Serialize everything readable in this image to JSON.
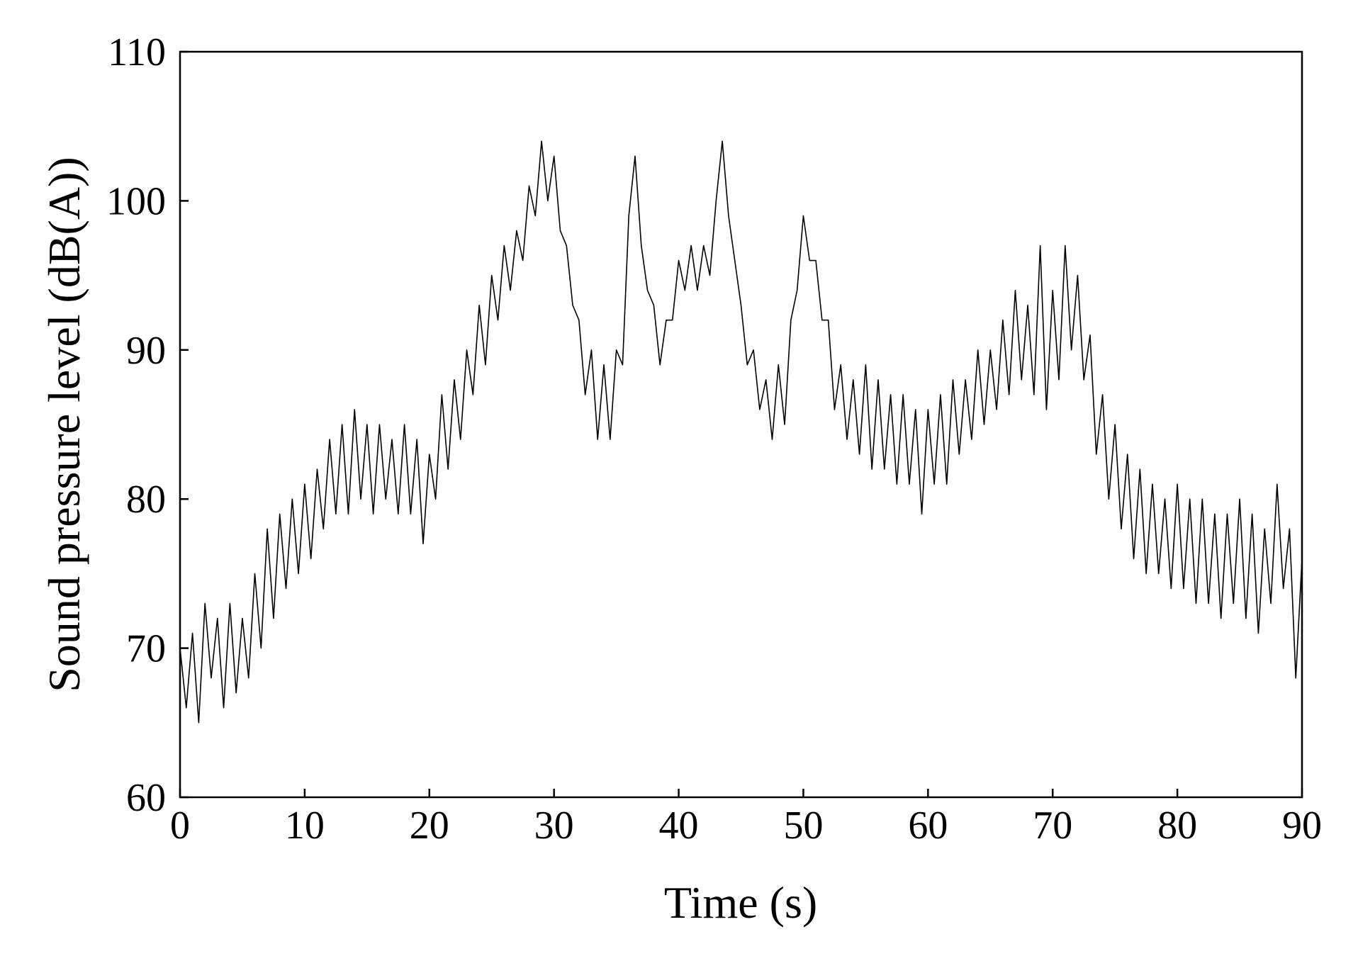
{
  "chart_data": {
    "type": "line",
    "xlabel": "Time (s)",
    "ylabel": "Sound pressure level (dB(A))",
    "color": "#000000",
    "xlim": [
      0,
      90
    ],
    "ylim": [
      60,
      110
    ],
    "xticks": [
      0,
      10,
      20,
      30,
      40,
      50,
      60,
      70,
      80,
      90
    ],
    "yticks": [
      60,
      70,
      80,
      90,
      100,
      110
    ],
    "x": [
      0,
      0.5,
      1,
      1.5,
      2,
      2.5,
      3,
      3.5,
      4,
      4.5,
      5,
      5.5,
      6,
      6.5,
      7,
      7.5,
      8,
      8.5,
      9,
      9.5,
      10,
      10.5,
      11,
      11.5,
      12,
      12.5,
      13,
      13.5,
      14,
      14.5,
      15,
      15.5,
      16,
      16.5,
      17,
      17.5,
      18,
      18.5,
      19,
      19.5,
      20,
      20.5,
      21,
      21.5,
      22,
      22.5,
      23,
      23.5,
      24,
      24.5,
      25,
      25.5,
      26,
      26.5,
      27,
      27.5,
      28,
      28.5,
      29,
      29.5,
      30,
      30.5,
      31,
      31.5,
      32,
      32.5,
      33,
      33.5,
      34,
      34.5,
      35,
      35.5,
      36,
      36.5,
      37,
      37.5,
      38,
      38.5,
      39,
      39.5,
      40,
      40.5,
      41,
      41.5,
      42,
      42.5,
      43,
      43.5,
      44,
      44.5,
      45,
      45.5,
      46,
      46.5,
      47,
      47.5,
      48,
      48.5,
      49,
      49.5,
      50,
      50.5,
      51,
      51.5,
      52,
      52.5,
      53,
      53.5,
      54,
      54.5,
      55,
      55.5,
      56,
      56.5,
      57,
      57.5,
      58,
      58.5,
      59,
      59.5,
      60,
      60.5,
      61,
      61.5,
      62,
      62.5,
      63,
      63.5,
      64,
      64.5,
      65,
      65.5,
      66,
      66.5,
      67,
      67.5,
      68,
      68.5,
      69,
      69.5,
      70,
      70.5,
      71,
      71.5,
      72,
      72.5,
      73,
      73.5,
      74,
      74.5,
      75,
      75.5,
      76,
      76.5,
      77,
      77.5,
      78,
      78.5,
      79,
      79.5,
      80,
      80.5,
      81,
      81.5,
      82,
      82.5,
      83,
      83.5,
      84,
      84.5,
      85,
      85.5,
      86,
      86.5,
      87,
      87.5,
      88,
      88.5,
      89,
      89.5,
      90
    ],
    "values": [
      70,
      66,
      71,
      65,
      73,
      68,
      72,
      66,
      73,
      67,
      72,
      68,
      75,
      70,
      78,
      72,
      79,
      74,
      80,
      75,
      81,
      76,
      82,
      78,
      84,
      79,
      85,
      79,
      86,
      80,
      85,
      79,
      85,
      80,
      84,
      79,
      85,
      79,
      84,
      77,
      83,
      80,
      87,
      82,
      88,
      84,
      90,
      87,
      93,
      89,
      95,
      92,
      97,
      94,
      98,
      96,
      101,
      99,
      104,
      100,
      103,
      98,
      97,
      93,
      92,
      87,
      90,
      84,
      89,
      84,
      90,
      89,
      99,
      103,
      97,
      94,
      93,
      89,
      92,
      92,
      96,
      94,
      97,
      94,
      97,
      95,
      100,
      104,
      99,
      96,
      93,
      89,
      90,
      86,
      88,
      84,
      89,
      85,
      92,
      94,
      99,
      96,
      96,
      92,
      92,
      86,
      89,
      84,
      88,
      83,
      89,
      82,
      88,
      82,
      87,
      81,
      87,
      81,
      86,
      79,
      86,
      81,
      87,
      81,
      88,
      83,
      88,
      84,
      90,
      85,
      90,
      86,
      92,
      87,
      94,
      88,
      93,
      87,
      97,
      86,
      94,
      88,
      97,
      90,
      95,
      88,
      91,
      83,
      87,
      80,
      85,
      78,
      83,
      76,
      82,
      75,
      81,
      75,
      80,
      74,
      81,
      74,
      80,
      73,
      80,
      73,
      79,
      72,
      79,
      73,
      80,
      72,
      79,
      71,
      78,
      73,
      81,
      74,
      78,
      68,
      76
    ]
  }
}
